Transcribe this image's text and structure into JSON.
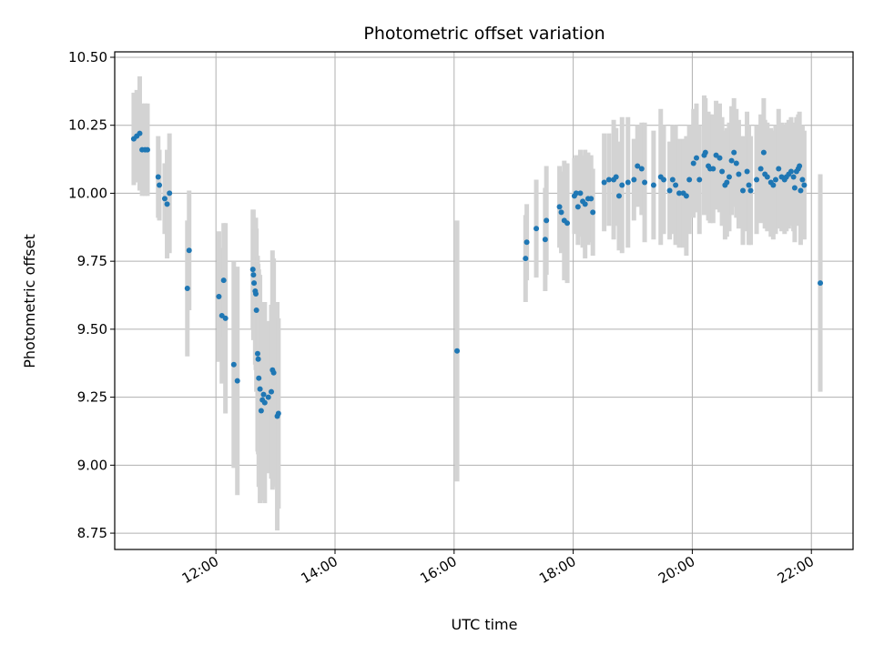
{
  "chart_data": {
    "type": "scatter",
    "title": "Photometric offset variation",
    "xlabel": "UTC time",
    "ylabel": "Photometric offset",
    "x_unit": "hours (UTC)",
    "xlim": [
      10.3,
      22.7
    ],
    "ylim": [
      8.69,
      10.52
    ],
    "x_ticks": [
      12,
      14,
      16,
      18,
      20,
      22
    ],
    "x_tick_labels": [
      "12:00",
      "14:00",
      "16:00",
      "18:00",
      "20:00",
      "22:00"
    ],
    "y_ticks": [
      8.75,
      9.0,
      9.25,
      9.5,
      9.75,
      10.0,
      10.25,
      10.5
    ],
    "y_tick_labels": [
      "8.75",
      "9.00",
      "9.25",
      "9.50",
      "9.75",
      "10.00",
      "10.25",
      "10.50"
    ],
    "grid": true,
    "legend": "none",
    "colors": {
      "point": "#1f77b4",
      "errorbar": "#d3d3d3",
      "grid": "#b0b0b0"
    },
    "series": [
      {
        "x": [
          10.62,
          10.67,
          10.72,
          10.76,
          10.81,
          10.85,
          11.03,
          11.05,
          11.14,
          11.18,
          11.22,
          11.52,
          11.55,
          12.05,
          12.1,
          12.13,
          12.16,
          12.3,
          12.36,
          12.62,
          12.63,
          12.64,
          12.66,
          12.67,
          12.68,
          12.7,
          12.71,
          12.72,
          12.74,
          12.76,
          12.78,
          12.8,
          12.82,
          12.88,
          12.93,
          12.95,
          12.97,
          13.03,
          13.05,
          16.05,
          17.2,
          17.22,
          17.38,
          17.53,
          17.55,
          17.77,
          17.8,
          17.85,
          17.9,
          18.02,
          18.05,
          18.08,
          18.12,
          18.16,
          18.2,
          18.25,
          18.3,
          18.33,
          18.52,
          18.6,
          18.68,
          18.72,
          18.77,
          18.82,
          18.92,
          19.02,
          19.08,
          19.15,
          19.2,
          19.35,
          19.47,
          19.52,
          19.62,
          19.67,
          19.72,
          19.78,
          19.85,
          19.9,
          19.95,
          20.02,
          20.07,
          20.12,
          20.2,
          20.22,
          20.27,
          20.3,
          20.35,
          20.4,
          20.46,
          20.5,
          20.55,
          20.58,
          20.62,
          20.66,
          20.7,
          20.74,
          20.78,
          20.85,
          20.92,
          20.95,
          20.98,
          21.08,
          21.15,
          21.2,
          21.22,
          21.26,
          21.32,
          21.36,
          21.4,
          21.45,
          21.5,
          21.55,
          21.58,
          21.62,
          21.66,
          21.7,
          21.72,
          21.75,
          21.78,
          21.8,
          21.82,
          21.85,
          21.88,
          22.15
        ],
        "y": [
          10.2,
          10.21,
          10.22,
          10.16,
          10.16,
          10.16,
          10.06,
          10.03,
          9.98,
          9.96,
          10.0,
          9.65,
          9.79,
          9.62,
          9.55,
          9.68,
          9.54,
          9.37,
          9.31,
          9.72,
          9.7,
          9.67,
          9.64,
          9.63,
          9.57,
          9.41,
          9.39,
          9.32,
          9.28,
          9.2,
          9.24,
          9.26,
          9.23,
          9.25,
          9.27,
          9.35,
          9.34,
          9.18,
          9.19,
          9.42,
          9.76,
          9.82,
          9.87,
          9.83,
          9.9,
          9.95,
          9.93,
          9.9,
          9.89,
          9.99,
          10.0,
          9.95,
          10.0,
          9.97,
          9.96,
          9.98,
          9.98,
          9.93,
          10.04,
          10.05,
          10.05,
          10.06,
          9.99,
          10.03,
          10.04,
          10.05,
          10.1,
          10.09,
          10.04,
          10.03,
          10.06,
          10.05,
          10.01,
          10.05,
          10.03,
          10.0,
          10.0,
          9.99,
          10.05,
          10.11,
          10.13,
          10.05,
          10.14,
          10.15,
          10.1,
          10.09,
          10.09,
          10.14,
          10.13,
          10.08,
          10.03,
          10.04,
          10.06,
          10.12,
          10.15,
          10.11,
          10.07,
          10.01,
          10.08,
          10.03,
          10.01,
          10.05,
          10.09,
          10.15,
          10.07,
          10.06,
          10.04,
          10.03,
          10.05,
          10.09,
          10.06,
          10.05,
          10.06,
          10.07,
          10.08,
          10.06,
          10.02,
          10.08,
          10.09,
          10.1,
          10.01,
          10.05,
          10.03,
          9.67
        ],
        "yerr": [
          0.17,
          0.17,
          0.21,
          0.17,
          0.17,
          0.17,
          0.15,
          0.13,
          0.13,
          0.2,
          0.22,
          0.25,
          0.22,
          0.24,
          0.25,
          0.21,
          0.35,
          0.38,
          0.42,
          0.22,
          0.24,
          0.2,
          0.27,
          0.28,
          0.3,
          0.36,
          0.35,
          0.4,
          0.42,
          0.33,
          0.35,
          0.34,
          0.37,
          0.28,
          0.32,
          0.44,
          0.42,
          0.42,
          0.35,
          0.48,
          0.16,
          0.14,
          0.18,
          0.19,
          0.2,
          0.15,
          0.15,
          0.22,
          0.22,
          0.14,
          0.14,
          0.14,
          0.16,
          0.17,
          0.2,
          0.17,
          0.16,
          0.16,
          0.18,
          0.17,
          0.22,
          0.18,
          0.2,
          0.25,
          0.24,
          0.15,
          0.15,
          0.17,
          0.22,
          0.2,
          0.25,
          0.2,
          0.18,
          0.2,
          0.22,
          0.2,
          0.2,
          0.22,
          0.2,
          0.2,
          0.2,
          0.2,
          0.22,
          0.2,
          0.2,
          0.2,
          0.2,
          0.2,
          0.2,
          0.2,
          0.2,
          0.2,
          0.2,
          0.2,
          0.2,
          0.2,
          0.2,
          0.2,
          0.22,
          0.22,
          0.2,
          0.2,
          0.2,
          0.2,
          0.2,
          0.2,
          0.2,
          0.2,
          0.2,
          0.22,
          0.2,
          0.2,
          0.2,
          0.2,
          0.2,
          0.2,
          0.2,
          0.2,
          0.2,
          0.2,
          0.2,
          0.2,
          0.2,
          0.4
        ]
      }
    ]
  }
}
